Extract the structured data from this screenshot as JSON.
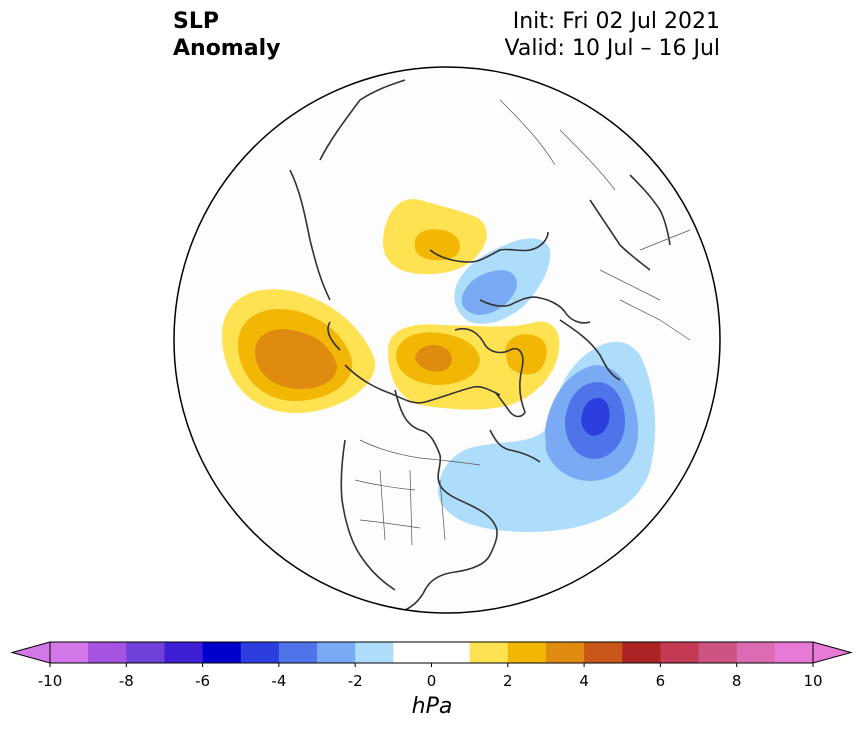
{
  "header": {
    "variable_line1": "SLP",
    "variable_line2": "Anomaly",
    "init": "Init: Fri 02 Jul 2021",
    "valid": "Valid: 10 Jul – 16 Jul"
  },
  "colorbar": {
    "unit": "hPa",
    "min": -10,
    "max": 10,
    "tick_labels": [
      "-10",
      "-8",
      "-6",
      "-4",
      "-2",
      "0",
      "2",
      "4",
      "6",
      "8",
      "10"
    ],
    "colors": [
      "#d477e8",
      "#a454e0",
      "#7040da",
      "#3f1fd3",
      "#0000cd",
      "#2a3fdd",
      "#4f73e8",
      "#79aaf3",
      "#aedcfb",
      "#ffffff",
      "#ffffff",
      "#ffe252",
      "#f2b705",
      "#de8b0f",
      "#c85719",
      "#ad2323",
      "#c43a52",
      "#cd5382",
      "#db6cb3",
      "#e67ad6"
    ]
  },
  "map": {
    "projection": "north polar stereographic",
    "colors": {
      "neg_1": "#aedcfb",
      "neg_2": "#79aaf3",
      "neg_3": "#4f73e8",
      "neg_4": "#2a3fdd",
      "pos_1": "#ffe252",
      "pos_2": "#f2b705",
      "pos_3": "#de8b0f"
    }
  }
}
